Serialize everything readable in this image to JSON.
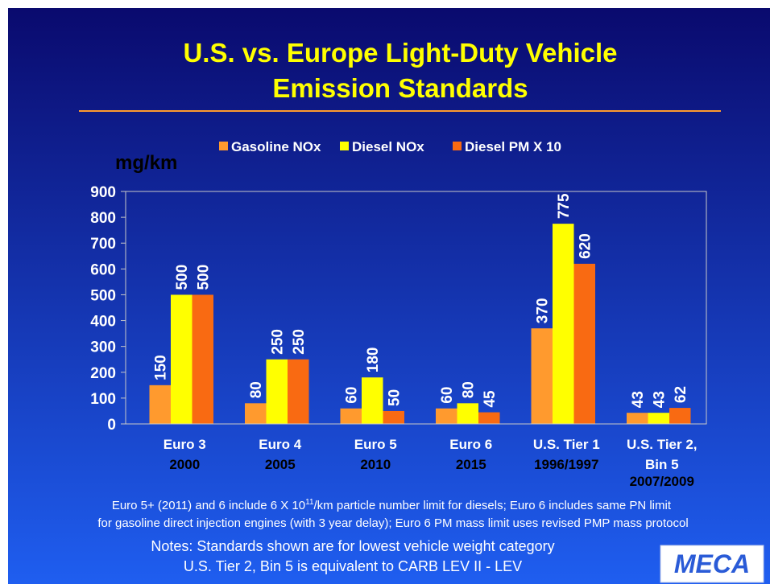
{
  "chart_data": {
    "type": "bar",
    "title": [
      "U.S. vs. Europe Light-Duty Vehicle",
      "Emission Standards"
    ],
    "y_label": "mg/km",
    "categories": [
      [
        "Euro 3",
        "2000"
      ],
      [
        "Euro 4",
        "2005"
      ],
      [
        "Euro 5",
        "2010"
      ],
      [
        "Euro 6",
        "2015"
      ],
      [
        "U.S. Tier 1",
        "1996/1997"
      ],
      [
        "U.S. Tier 2,",
        "Bin 5",
        "2007/2009"
      ]
    ],
    "series": [
      {
        "name": "Gasoline NOx",
        "color": "#ff9a2e",
        "values": [
          150,
          80,
          60,
          60,
          370,
          43
        ]
      },
      {
        "name": "Diesel NOx",
        "color": "#ffff00",
        "values": [
          500,
          250,
          180,
          80,
          775,
          43
        ]
      },
      {
        "name": "Diesel PM X 10",
        "color": "#f96a12",
        "values": [
          500,
          250,
          50,
          45,
          620,
          62
        ]
      }
    ],
    "ylim": [
      0,
      900
    ],
    "yticks": [
      0,
      100,
      200,
      300,
      400,
      500,
      600,
      700,
      800,
      900
    ],
    "legend": "top",
    "grid": false
  },
  "footnote": {
    "line1_start": "Euro 5+ (2011) and 6 include 6 X 10",
    "line1_sup": "11",
    "line1_end": "/km particle number limit for diesels; Euro 6 includes same PN limit",
    "line2": "for gasoline direct injection engines (with 3 year delay); Euro 6 PM mass limit uses revised PMP mass protocol"
  },
  "notes": [
    "Notes: Standards shown are for lowest vehicle weight category",
    "U.S. Tier 2, Bin 5 is equivalent to CARB LEV II - LEV"
  ],
  "logo": "MECA"
}
